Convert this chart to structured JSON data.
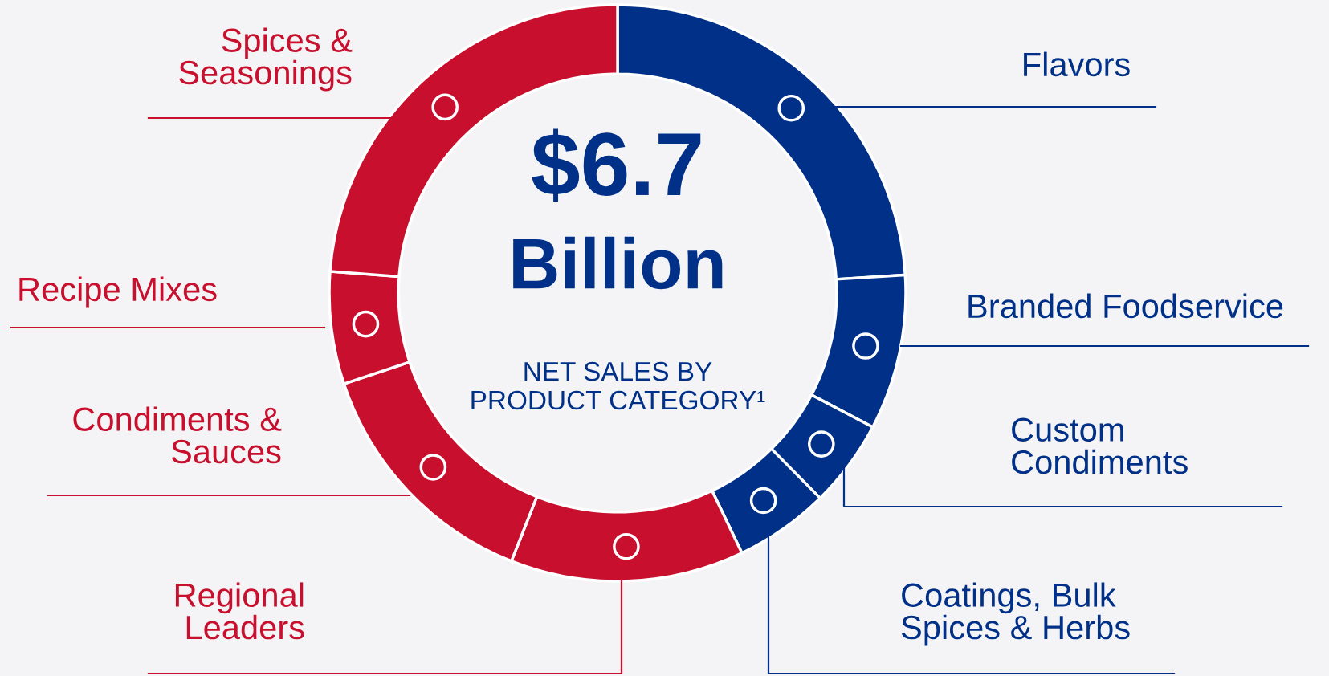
{
  "chart_data": {
    "type": "donut",
    "title": "$6.7 Billion",
    "subtitle": "NET SALES BY PRODUCT CATEGORY¹",
    "categories": [
      "Flavors",
      "Branded Foodservice",
      "Custom Condiments",
      "Coatings, Bulk Spices & Herbs",
      "Regional Leaders",
      "Condiments & Sauces",
      "Recipe Mixes",
      "Spices & Seasonings"
    ],
    "values": [
      24.0,
      8.7,
      4.9,
      5.3,
      13.1,
      13.9,
      6.3,
      23.8
    ],
    "colors": [
      "#003087",
      "#003087",
      "#003087",
      "#003087",
      "#c8102e",
      "#c8102e",
      "#c8102e",
      "#c8102e"
    ],
    "legend": false
  }
}
